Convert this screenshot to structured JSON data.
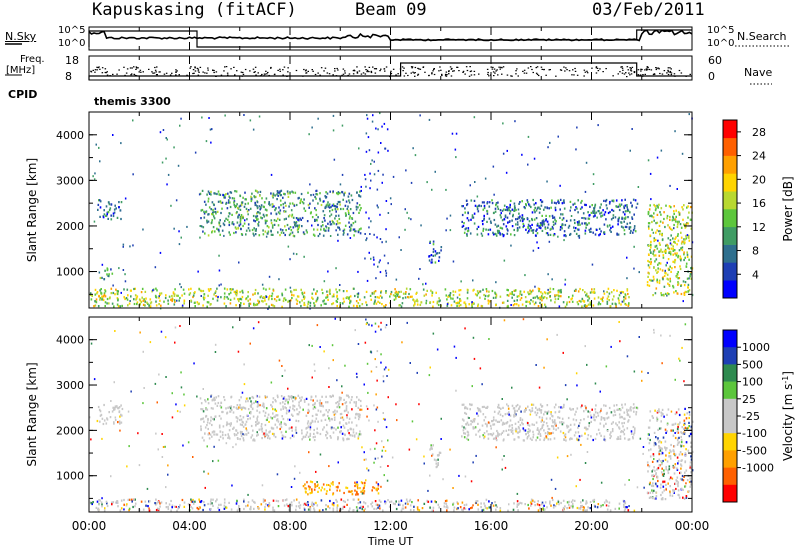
{
  "header": {
    "station": "Kapuskasing (fitACF)",
    "beam": "Beam 09",
    "date": "03/Feb/2011"
  },
  "top_panels": {
    "nsky_label": "N.Sky",
    "nsky_ticks": [
      "10^5",
      "10^0"
    ],
    "nsearch_label": "N.Search",
    "nsearch_ticks": [
      "10^5",
      "10^0"
    ],
    "freq_label_1": "Freq.",
    "freq_label_2": "[MHz]",
    "freq_ticks": [
      "18",
      "8"
    ],
    "nave_label": "Nave",
    "nave_ticks": [
      "60",
      "0"
    ],
    "cpid_label": "CPID",
    "cpid_value": "themis 3300"
  },
  "colors": {
    "power_scale": [
      "#0000ff",
      "#1e3fb4",
      "#2e6f8e",
      "#3f9c64",
      "#5cc63c",
      "#b8d830",
      "#ffd400",
      "#ffa000",
      "#ff6000",
      "#ff0000"
    ],
    "velocity_scale": [
      "#0000ff",
      "#1e3fb4",
      "#2e8a4f",
      "#5cc63c",
      "#c8c8c8",
      "#c8c8c8",
      "#ffd400",
      "#ffa000",
      "#ff6000",
      "#ff0000"
    ],
    "ground_scatter": "#c8c8c8"
  },
  "chart_data": [
    {
      "type": "heatmap",
      "name": "power",
      "xlabel": "",
      "ylabel": "Slant Range [km]",
      "x_ticks": [
        "00:00",
        "04:00",
        "08:00",
        "12:00",
        "16:00",
        "20:00",
        "00:00"
      ],
      "y_ticks": [
        1000,
        2000,
        3000,
        4000
      ],
      "ylim": [
        200,
        4500
      ],
      "xlim_hours": [
        0,
        24
      ],
      "colorbar": {
        "label": "Power [dB]",
        "ticks": [
          4,
          8,
          12,
          16,
          20,
          24,
          28
        ],
        "range": [
          0,
          30
        ]
      },
      "scatter_regions": [
        {
          "t": [
            0.3,
            1.3
          ],
          "r": [
            2150,
            2600
          ],
          "level": 2
        },
        {
          "t": [
            0.3,
            0.9
          ],
          "r": [
            850,
            1100
          ],
          "level": 3
        },
        {
          "t": [
            4.4,
            10.8
          ],
          "r": [
            1800,
            2800
          ],
          "level": 3
        },
        {
          "t": [
            13.5,
            14.0
          ],
          "r": [
            1200,
            1700
          ],
          "level": 2
        },
        {
          "t": [
            14.8,
            21.8
          ],
          "r": [
            1800,
            2600
          ],
          "level": 2
        },
        {
          "t": [
            22.2,
            24.0
          ],
          "r": [
            500,
            2500
          ],
          "level": 5
        },
        {
          "t": [
            0.0,
            21.5
          ],
          "r": [
            250,
            650
          ],
          "level": 5
        }
      ]
    },
    {
      "type": "heatmap",
      "name": "velocity",
      "xlabel": "Time UT",
      "ylabel": "Slant Range [km]",
      "x_ticks": [
        "00:00",
        "04:00",
        "08:00",
        "12:00",
        "16:00",
        "20:00",
        "00:00"
      ],
      "y_ticks": [
        1000,
        2000,
        3000,
        4000
      ],
      "ylim": [
        200,
        4500
      ],
      "xlim_hours": [
        0,
        24
      ],
      "colorbar": {
        "label": "Velocity [m s",
        "label_sup": "-1",
        "ticks": [
          "1000",
          "500",
          "100",
          "25",
          "-25",
          "-100",
          "-500",
          "-1000"
        ]
      },
      "scatter_regions": [
        {
          "t": [
            0.3,
            1.3
          ],
          "r": [
            2150,
            2600
          ],
          "class": "ground"
        },
        {
          "t": [
            4.4,
            10.8
          ],
          "r": [
            1800,
            2800
          ],
          "class": "ground"
        },
        {
          "t": [
            13.5,
            14.0
          ],
          "r": [
            1200,
            1700
          ],
          "class": "ground"
        },
        {
          "t": [
            14.8,
            21.8
          ],
          "r": [
            1800,
            2600
          ],
          "class": "ground"
        },
        {
          "t": [
            22.2,
            24.0
          ],
          "r": [
            500,
            2500
          ],
          "class": "mixed"
        },
        {
          "t": [
            8.5,
            11.5
          ],
          "r": [
            600,
            900
          ],
          "class": "negative"
        },
        {
          "t": [
            0.0,
            21.5
          ],
          "r": [
            250,
            500
          ],
          "class": "mixed"
        }
      ]
    }
  ]
}
